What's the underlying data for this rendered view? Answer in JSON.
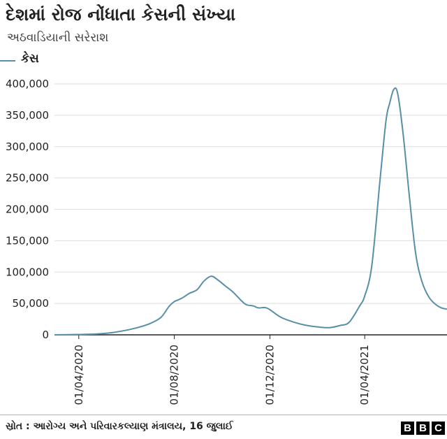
{
  "title": "દેશમાં રોજ નોંધાતા કેસની સંખ્યા",
  "subtitle": "અઠવાડિયાની સરેરાશ",
  "source": "સ્રોત : આરોગ્ય અને પરિવારકલ્યાણ મંત્રાલય, 16 જુલાઈ",
  "logo": {
    "letters": [
      "B",
      "B",
      "C"
    ]
  },
  "colors": {
    "line": "#588fa6",
    "grid": "#dddddd",
    "axis": "#222222"
  },
  "chart_data": {
    "type": "line",
    "title": "દેશમાં રોજ નોંધાતા કેસની સંખ્યા",
    "subtitle": "અઠવાડિયાની સરેરાશ",
    "xlabel": "",
    "ylabel": "",
    "legend_position": "top-left",
    "grid": true,
    "x_range": [
      "2020-03-01",
      "2021-07-15"
    ],
    "ylim": [
      0,
      400000
    ],
    "y_ticks": [
      0,
      50000,
      100000,
      150000,
      200000,
      250000,
      300000,
      350000,
      400000
    ],
    "y_tick_labels": [
      "0",
      "50,000",
      "100,000",
      "150,000",
      "200,000",
      "250,000",
      "300,000",
      "350,000",
      "400,000"
    ],
    "x_ticks": [
      "2020-04-01",
      "2020-08-01",
      "2020-12-01",
      "2021-04-01"
    ],
    "x_tick_labels": [
      "01/04/2020",
      "01/08/2020",
      "01/12/2020",
      "01/04/2021"
    ],
    "series": [
      {
        "name": "કેસ",
        "color": "#588fa6",
        "points": [
          [
            "2020-03-01",
            0
          ],
          [
            "2020-04-01",
            600
          ],
          [
            "2020-04-15",
            1000
          ],
          [
            "2020-05-01",
            2000
          ],
          [
            "2020-05-15",
            3800
          ],
          [
            "2020-06-01",
            7500
          ],
          [
            "2020-06-15",
            11500
          ],
          [
            "2020-07-01",
            18000
          ],
          [
            "2020-07-15",
            28000
          ],
          [
            "2020-07-25",
            45000
          ],
          [
            "2020-08-01",
            53000
          ],
          [
            "2020-08-10",
            58000
          ],
          [
            "2020-08-20",
            66000
          ],
          [
            "2020-08-30",
            72000
          ],
          [
            "2020-09-08",
            86000
          ],
          [
            "2020-09-17",
            93500
          ],
          [
            "2020-09-25",
            88000
          ],
          [
            "2020-10-05",
            78000
          ],
          [
            "2020-10-15",
            68000
          ],
          [
            "2020-10-25",
            55000
          ],
          [
            "2020-11-01",
            48000
          ],
          [
            "2020-11-10",
            46000
          ],
          [
            "2020-11-16",
            43000
          ],
          [
            "2020-11-25",
            43500
          ],
          [
            "2020-12-01",
            40000
          ],
          [
            "2020-12-15",
            28000
          ],
          [
            "2021-01-01",
            20000
          ],
          [
            "2021-01-15",
            15500
          ],
          [
            "2021-02-01",
            12500
          ],
          [
            "2021-02-15",
            11500
          ],
          [
            "2021-03-01",
            15000
          ],
          [
            "2021-03-12",
            20000
          ],
          [
            "2021-03-25",
            45000
          ],
          [
            "2021-04-01",
            62000
          ],
          [
            "2021-04-10",
            110000
          ],
          [
            "2021-04-20",
            240000
          ],
          [
            "2021-04-28",
            340000
          ],
          [
            "2021-05-03",
            370000
          ],
          [
            "2021-05-08",
            391000
          ],
          [
            "2021-05-13",
            385000
          ],
          [
            "2021-05-20",
            320000
          ],
          [
            "2021-05-28",
            220000
          ],
          [
            "2021-06-05",
            130000
          ],
          [
            "2021-06-13",
            85000
          ],
          [
            "2021-06-22",
            60000
          ],
          [
            "2021-07-01",
            48000
          ],
          [
            "2021-07-08",
            43000
          ],
          [
            "2021-07-15",
            41000
          ]
        ]
      }
    ]
  }
}
